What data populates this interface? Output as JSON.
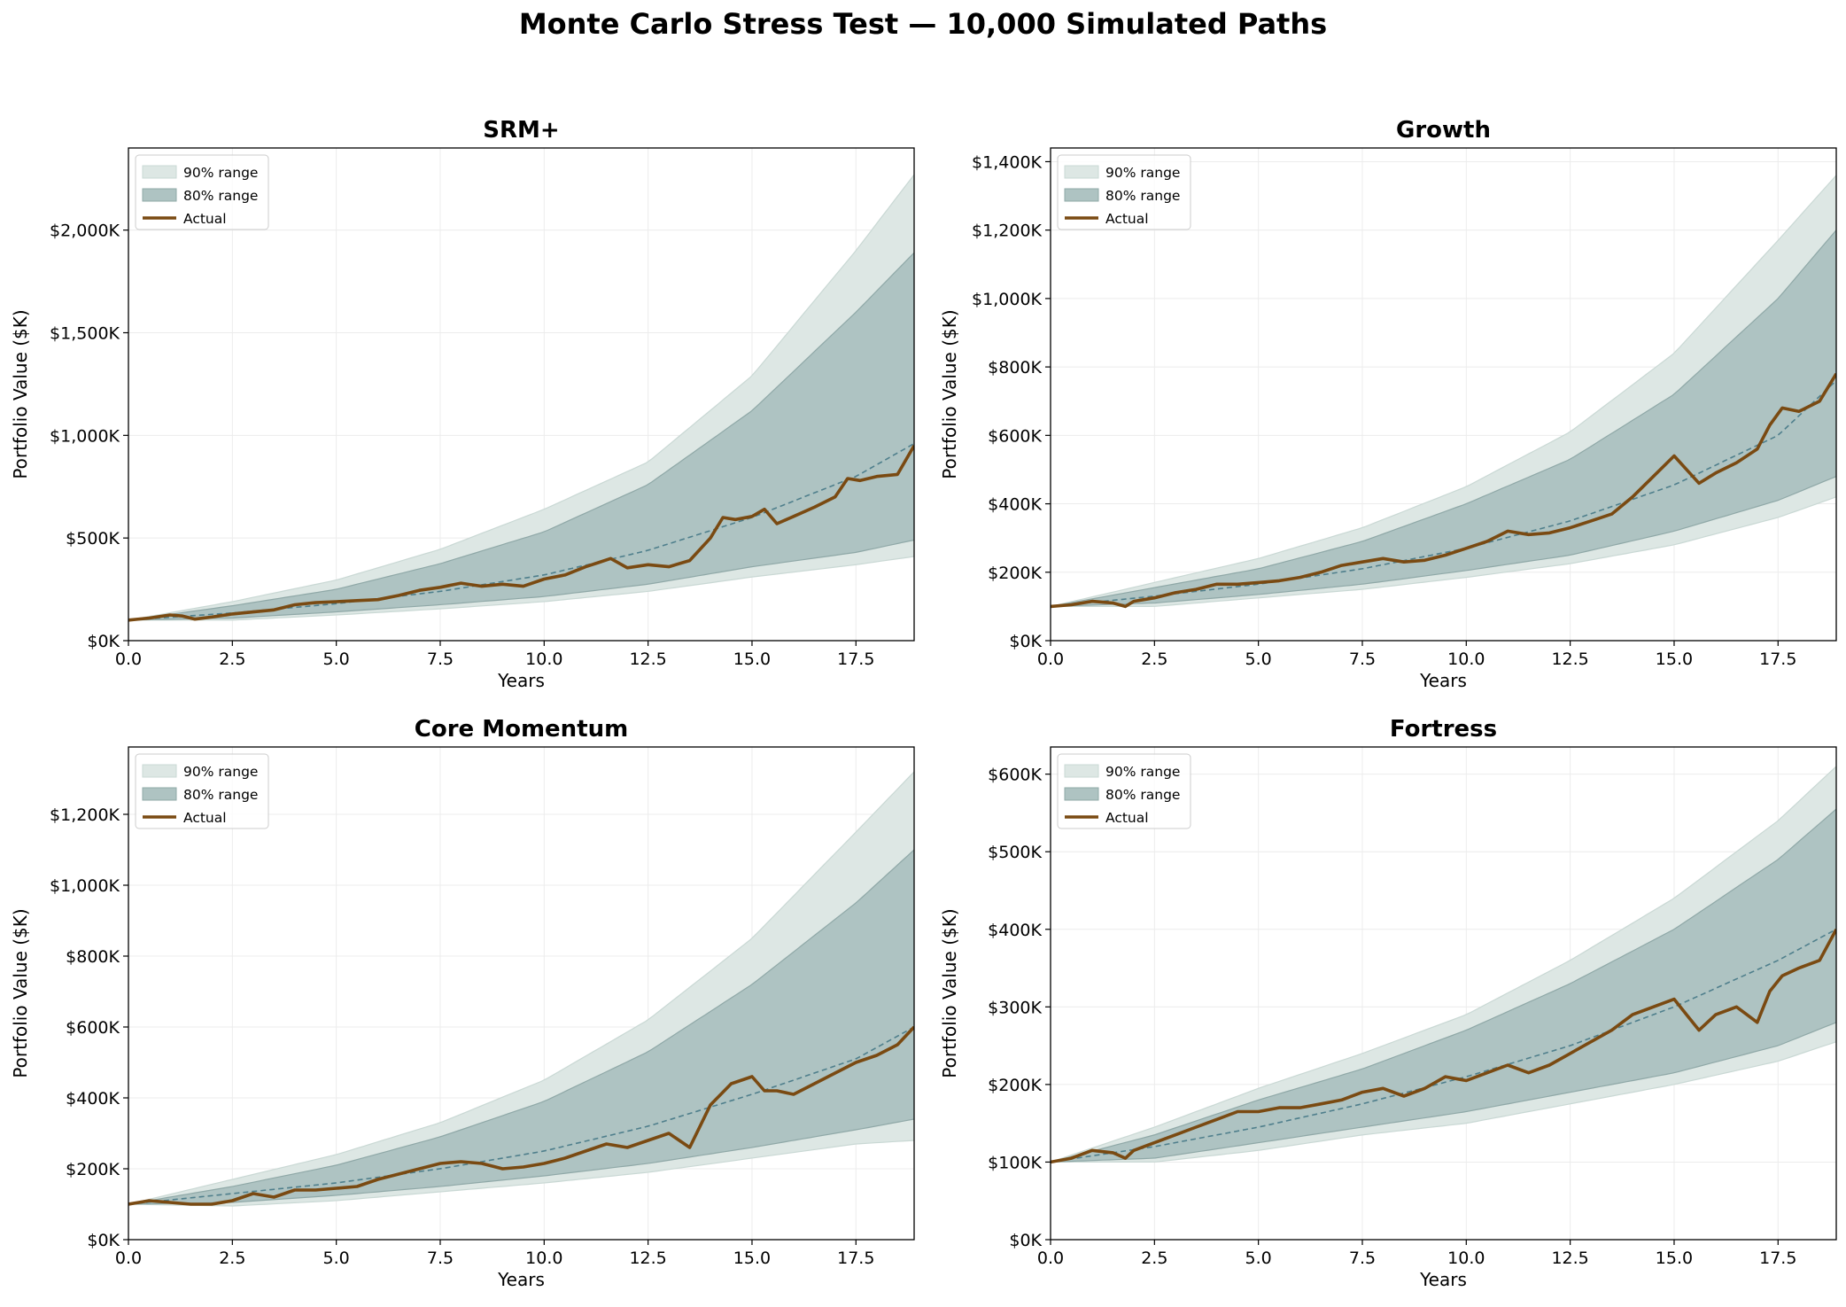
{
  "figure": {
    "title": "Monte Carlo Stress Test — 10,000 Simulated Paths"
  },
  "colors": {
    "band90": "#dde7e4",
    "band90_edge": "#c9d8d4",
    "band80": "#aec3c2",
    "band80_edge": "#8fa8a7",
    "median": "#4f7f8c",
    "actual": "#7a4a12",
    "grid": "#ececec"
  },
  "chart_data": [
    {
      "type": "area",
      "title": "SRM+",
      "xlabel": "Years",
      "ylabel": "Portfolio Value ($K)",
      "xlim": [
        0,
        18.9
      ],
      "ylim": [
        0,
        2400
      ],
      "xticks": [
        0,
        2.5,
        5,
        7.5,
        10,
        12.5,
        15,
        17.5
      ],
      "xtick_labels": [
        "0.0",
        "2.5",
        "5.0",
        "7.5",
        "10.0",
        "12.5",
        "15.0",
        "17.5"
      ],
      "yticks": [
        0,
        500,
        1000,
        1500,
        2000
      ],
      "ytick_labels": [
        "$0K",
        "$500K",
        "$1,000K",
        "$1,500K",
        "$2,000K"
      ],
      "grid": true,
      "legend": {
        "placement": "top-left",
        "entries": [
          "90% range",
          "80% range",
          "Actual"
        ]
      },
      "band_x": [
        0,
        2.5,
        5,
        7.5,
        10,
        12.5,
        15,
        17.5,
        18.9
      ],
      "p95": [
        100,
        190,
        295,
        445,
        640,
        870,
        1290,
        1900,
        2270
      ],
      "p90": [
        100,
        170,
        250,
        375,
        530,
        760,
        1120,
        1600,
        1890
      ],
      "p10": [
        100,
        110,
        140,
        175,
        215,
        275,
        360,
        430,
        490
      ],
      "p5": [
        100,
        100,
        125,
        155,
        190,
        240,
        310,
        370,
        410
      ],
      "median_x": [
        0,
        2.5,
        5,
        7.5,
        10,
        12.5,
        15,
        17.5,
        18.9
      ],
      "median": [
        100,
        135,
        180,
        240,
        320,
        440,
        600,
        800,
        960
      ],
      "actual_x": [
        0,
        0.5,
        1,
        1.3,
        1.6,
        2,
        2.5,
        3,
        3.5,
        4,
        4.5,
        5,
        5.5,
        6,
        6.5,
        7,
        7.5,
        8,
        8.5,
        9,
        9.5,
        10,
        10.5,
        11,
        11.3,
        11.6,
        12,
        12.5,
        13,
        13.5,
        14,
        14.3,
        14.6,
        15,
        15.3,
        15.6,
        16,
        16.5,
        17,
        17.3,
        17.6,
        18,
        18.5,
        18.9
      ],
      "actual": [
        100,
        110,
        125,
        120,
        105,
        115,
        130,
        140,
        150,
        175,
        185,
        190,
        195,
        200,
        220,
        245,
        260,
        280,
        265,
        275,
        265,
        300,
        320,
        360,
        380,
        400,
        355,
        370,
        360,
        390,
        500,
        600,
        590,
        605,
        640,
        570,
        605,
        650,
        700,
        790,
        780,
        800,
        810,
        950
      ]
    },
    {
      "type": "area",
      "title": "Growth",
      "xlabel": "Years",
      "ylabel": "Portfolio Value ($K)",
      "xlim": [
        0,
        18.9
      ],
      "ylim": [
        0,
        1440
      ],
      "xticks": [
        0,
        2.5,
        5,
        7.5,
        10,
        12.5,
        15,
        17.5
      ],
      "xtick_labels": [
        "0.0",
        "2.5",
        "5.0",
        "7.5",
        "10.0",
        "12.5",
        "15.0",
        "17.5"
      ],
      "yticks": [
        0,
        200,
        400,
        600,
        800,
        1000,
        1200,
        1400
      ],
      "ytick_labels": [
        "$0K",
        "$200K",
        "$400K",
        "$600K",
        "$800K",
        "$1,000K",
        "$1,200K",
        "$1,400K"
      ],
      "grid": true,
      "legend": {
        "placement": "top-left",
        "entries": [
          "90% range",
          "80% range",
          "Actual"
        ]
      },
      "band_x": [
        0,
        2.5,
        5,
        7.5,
        10,
        12.5,
        15,
        17.5,
        18.9
      ],
      "p95": [
        100,
        170,
        240,
        330,
        450,
        610,
        840,
        1170,
        1360
      ],
      "p90": [
        100,
        155,
        210,
        290,
        400,
        530,
        720,
        1000,
        1200
      ],
      "p10": [
        100,
        110,
        135,
        165,
        205,
        250,
        320,
        410,
        480
      ],
      "p5": [
        100,
        100,
        125,
        150,
        185,
        225,
        280,
        360,
        420
      ],
      "median_x": [
        0,
        2.5,
        5,
        7.5,
        10,
        12.5,
        15,
        17.5,
        18.9
      ],
      "median": [
        100,
        130,
        165,
        210,
        270,
        350,
        455,
        600,
        760
      ],
      "actual_x": [
        0,
        0.5,
        1,
        1.5,
        1.8,
        2,
        2.5,
        3,
        3.5,
        4,
        4.5,
        5,
        5.5,
        6,
        6.5,
        7,
        7.5,
        8,
        8.5,
        9,
        9.5,
        10,
        10.5,
        11,
        11.5,
        12,
        12.5,
        13,
        13.5,
        14,
        14.5,
        15,
        15.3,
        15.6,
        16,
        16.5,
        17,
        17.3,
        17.6,
        18,
        18.5,
        18.9
      ],
      "actual": [
        100,
        105,
        115,
        110,
        100,
        115,
        125,
        140,
        150,
        165,
        165,
        170,
        175,
        185,
        200,
        220,
        230,
        240,
        230,
        235,
        250,
        270,
        290,
        320,
        310,
        315,
        330,
        350,
        370,
        420,
        480,
        540,
        500,
        460,
        490,
        520,
        560,
        630,
        680,
        670,
        700,
        780
      ]
    },
    {
      "type": "area",
      "title": "Core Momentum",
      "xlabel": "Years",
      "ylabel": "Portfolio Value ($K)",
      "xlim": [
        0,
        18.9
      ],
      "ylim": [
        0,
        1390
      ],
      "xticks": [
        0,
        2.5,
        5,
        7.5,
        10,
        12.5,
        15,
        17.5
      ],
      "xtick_labels": [
        "0.0",
        "2.5",
        "5.0",
        "7.5",
        "10.0",
        "12.5",
        "15.0",
        "17.5"
      ],
      "yticks": [
        0,
        200,
        400,
        600,
        800,
        1000,
        1200
      ],
      "ytick_labels": [
        "$0K",
        "$200K",
        "$400K",
        "$600K",
        "$800K",
        "$1,000K",
        "$1,200K"
      ],
      "grid": true,
      "legend": {
        "placement": "top-left",
        "entries": [
          "90% range",
          "80% range",
          "Actual"
        ]
      },
      "band_x": [
        0,
        2.5,
        5,
        7.5,
        10,
        12.5,
        15,
        17.5,
        18.9
      ],
      "p95": [
        100,
        170,
        240,
        330,
        450,
        620,
        850,
        1150,
        1320
      ],
      "p90": [
        100,
        150,
        210,
        290,
        390,
        530,
        720,
        950,
        1100
      ],
      "p10": [
        100,
        105,
        125,
        150,
        180,
        215,
        260,
        310,
        340
      ],
      "p5": [
        100,
        95,
        110,
        135,
        160,
        190,
        230,
        270,
        280
      ],
      "median_x": [
        0,
        2.5,
        5,
        7.5,
        10,
        12.5,
        15,
        17.5,
        18.9
      ],
      "median": [
        100,
        130,
        160,
        200,
        250,
        320,
        410,
        510,
        600
      ],
      "actual_x": [
        0,
        0.5,
        1,
        1.5,
        2,
        2.5,
        3,
        3.5,
        4,
        4.5,
        5,
        5.5,
        6,
        6.5,
        7,
        7.5,
        8,
        8.5,
        9,
        9.5,
        10,
        10.5,
        11,
        11.5,
        12,
        12.5,
        13,
        13.5,
        14,
        14.5,
        15,
        15.3,
        15.6,
        16,
        16.5,
        17,
        17.5,
        18,
        18.5,
        18.9
      ],
      "actual": [
        100,
        110,
        105,
        100,
        100,
        110,
        130,
        120,
        140,
        140,
        145,
        150,
        170,
        185,
        200,
        215,
        220,
        215,
        200,
        205,
        215,
        230,
        250,
        270,
        260,
        280,
        300,
        260,
        380,
        440,
        460,
        420,
        420,
        410,
        440,
        470,
        500,
        520,
        550,
        600
      ]
    },
    {
      "type": "area",
      "title": "Fortress",
      "xlabel": "Years",
      "ylabel": "Portfolio Value ($K)",
      "xlim": [
        0,
        18.9
      ],
      "ylim": [
        0,
        635
      ],
      "xticks": [
        0,
        2.5,
        5,
        7.5,
        10,
        12.5,
        15,
        17.5
      ],
      "xtick_labels": [
        "0.0",
        "2.5",
        "5.0",
        "7.5",
        "10.0",
        "12.5",
        "15.0",
        "17.5"
      ],
      "yticks": [
        0,
        100,
        200,
        300,
        400,
        500,
        600
      ],
      "ytick_labels": [
        "$0K",
        "$100K",
        "$200K",
        "$300K",
        "$400K",
        "$500K",
        "$600K"
      ],
      "grid": true,
      "legend": {
        "placement": "top-left",
        "entries": [
          "90% range",
          "80% range",
          "Actual"
        ]
      },
      "band_x": [
        0,
        2.5,
        5,
        7.5,
        10,
        12.5,
        15,
        17.5,
        18.9
      ],
      "p95": [
        100,
        145,
        195,
        240,
        290,
        360,
        440,
        540,
        610
      ],
      "p90": [
        100,
        135,
        180,
        220,
        270,
        330,
        400,
        490,
        555
      ],
      "p10": [
        100,
        105,
        125,
        145,
        165,
        190,
        215,
        250,
        280
      ],
      "p5": [
        100,
        100,
        115,
        135,
        150,
        175,
        200,
        230,
        255
      ],
      "median_x": [
        0,
        2.5,
        5,
        7.5,
        10,
        12.5,
        15,
        17.5,
        18.9
      ],
      "median": [
        100,
        120,
        145,
        175,
        210,
        250,
        300,
        360,
        400
      ],
      "actual_x": [
        0,
        0.5,
        1,
        1.5,
        1.8,
        2,
        2.5,
        3,
        3.5,
        4,
        4.5,
        5,
        5.5,
        6,
        6.5,
        7,
        7.5,
        8,
        8.5,
        9,
        9.5,
        10,
        10.5,
        11,
        11.5,
        12,
        12.5,
        13,
        13.5,
        14,
        14.5,
        15,
        15.3,
        15.6,
        16,
        16.5,
        17,
        17.3,
        17.6,
        18,
        18.5,
        18.9
      ],
      "actual": [
        100,
        105,
        115,
        112,
        105,
        115,
        125,
        135,
        145,
        155,
        165,
        165,
        170,
        170,
        175,
        180,
        190,
        195,
        185,
        195,
        210,
        205,
        215,
        225,
        215,
        225,
        240,
        255,
        270,
        290,
        300,
        310,
        290,
        270,
        290,
        300,
        280,
        320,
        340,
        350,
        360,
        400
      ]
    }
  ]
}
